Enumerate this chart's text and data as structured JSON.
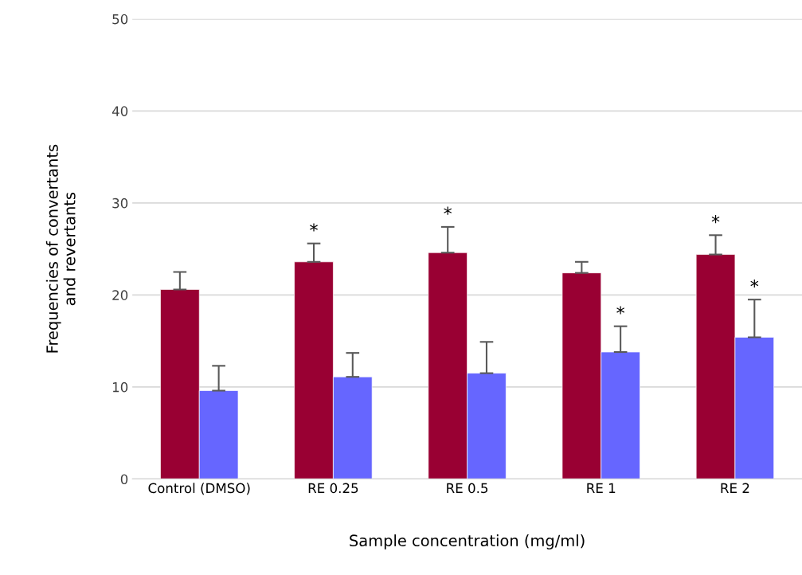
{
  "chart_data": {
    "type": "bar",
    "xlabel": "Sample concentration (mg/ml)",
    "ylabel": "Frequencies of convertants\nand revertants",
    "categories": [
      "Control (DMSO)",
      "RE 0.25",
      "RE 0.5",
      "RE 1",
      "RE 2"
    ],
    "series": [
      {
        "color": "#990033",
        "values": [
          20.6,
          23.6,
          24.6,
          22.4,
          24.4
        ],
        "errors": [
          [
            20.6,
            22.5
          ],
          [
            23.6,
            25.6
          ],
          [
            24.6,
            27.4
          ],
          [
            22.4,
            23.6
          ],
          [
            24.4,
            26.5
          ]
        ],
        "value_labels": [
          null,
          "*",
          "*",
          null,
          "*"
        ]
      },
      {
        "color": "#6666ff",
        "values": [
          9.6,
          11.1,
          11.5,
          13.8,
          15.4
        ],
        "errors": [
          [
            9.6,
            12.3
          ],
          [
            11.1,
            13.7
          ],
          [
            11.5,
            14.9
          ],
          [
            13.8,
            16.6
          ],
          [
            15.4,
            19.5
          ]
        ],
        "value_labels": [
          null,
          null,
          null,
          "*",
          "*"
        ]
      }
    ],
    "ylim": [
      0,
      50
    ],
    "yticks": [
      0,
      10,
      20,
      30,
      40,
      50
    ],
    "grid": "y",
    "legend": false
  }
}
